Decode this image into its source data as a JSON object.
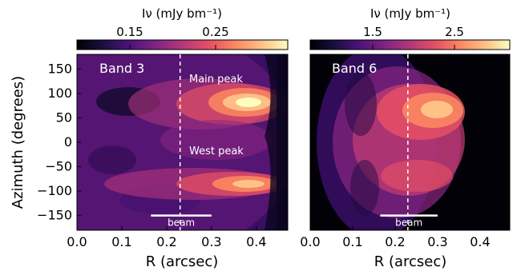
{
  "chart_data": [
    {
      "type": "heatmap",
      "panel_label": "Band 3",
      "xlabel": "R (arcsec)",
      "ylabel": "Azimuth (degrees)",
      "xlim": [
        0.0,
        0.47
      ],
      "ylim": [
        -180,
        180
      ],
      "x_ticks": [
        "0.0",
        "0.1",
        "0.2",
        "0.3",
        "0.4"
      ],
      "x_tick_values": [
        0.0,
        0.1,
        0.2,
        0.3,
        0.4
      ],
      "y_ticks": [
        "150",
        "100",
        "50",
        "0",
        "−50",
        "−100",
        "−150"
      ],
      "y_tick_values": [
        150,
        100,
        50,
        0,
        -50,
        -100,
        -150
      ],
      "colorbar": {
        "label": "Iν (mJy bm⁻¹)",
        "ticks": [
          "0.15",
          "0.25"
        ],
        "tick_values": [
          0.15,
          0.25
        ],
        "range": [
          0.1,
          0.32
        ],
        "colormap": "magma"
      },
      "dashed_line_r": 0.23,
      "annotations": [
        {
          "text": "Main peak",
          "r": 0.3,
          "azimuth": 70
        },
        {
          "text": "West peak",
          "r": 0.3,
          "azimuth": -10
        }
      ],
      "beam": {
        "label": "beam",
        "r_start": 0.165,
        "r_end": 0.3,
        "azimuth": -150
      },
      "features": [
        {
          "name": "Main peak",
          "r": 0.32,
          "azimuth": 65,
          "intensity": 0.32
        },
        {
          "name": "West peak",
          "r": 0.32,
          "azimuth": -95,
          "intensity": 0.28
        }
      ]
    },
    {
      "type": "heatmap",
      "panel_label": "Band 6",
      "xlabel": "R (arcsec)",
      "ylabel": "",
      "xlim": [
        0.0,
        0.47
      ],
      "ylim": [
        -180,
        180
      ],
      "x_ticks": [
        "0.0",
        "0.1",
        "0.2",
        "0.3",
        "0.4"
      ],
      "x_tick_values": [
        0.0,
        0.1,
        0.2,
        0.3,
        0.4
      ],
      "colorbar": {
        "label": "Iν (mJy bm⁻¹)",
        "ticks": [
          "1.5",
          "2.5"
        ],
        "tick_values": [
          1.5,
          2.5
        ],
        "range": [
          0.6,
          3.3
        ],
        "colormap": "magma"
      },
      "dashed_line_r": 0.23,
      "beam": {
        "label": "beam",
        "r_start": 0.165,
        "r_end": 0.3,
        "azimuth": -150
      },
      "features": [
        {
          "name": "peak",
          "r": 0.3,
          "azimuth": 50,
          "intensity": 3.1
        }
      ]
    }
  ]
}
